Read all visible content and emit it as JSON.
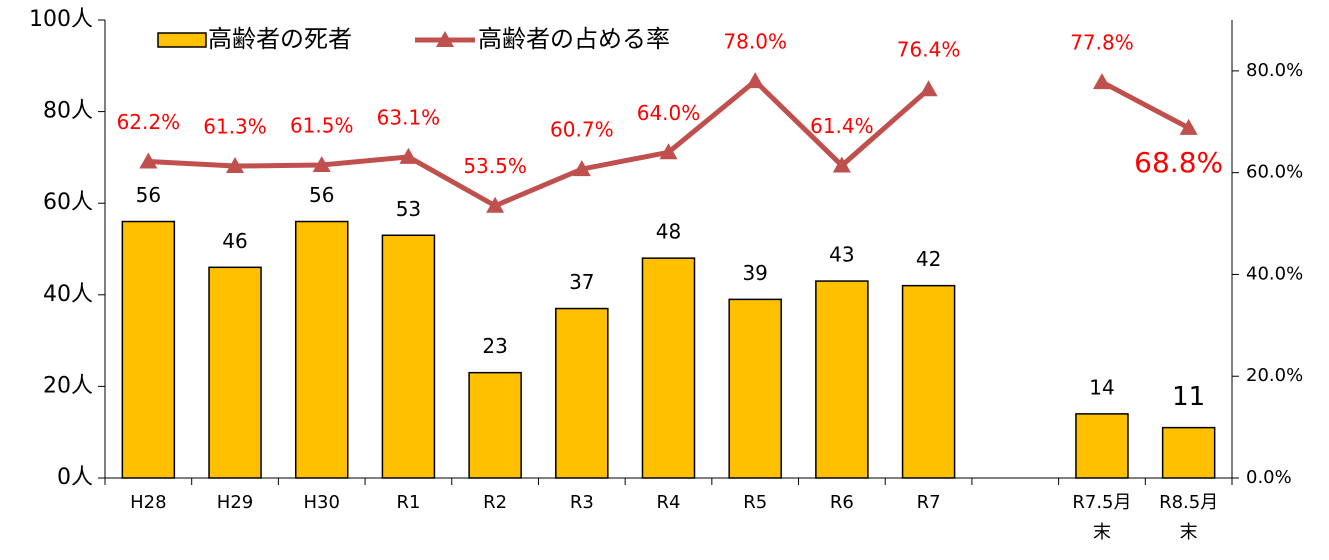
{
  "chart_data": {
    "type": "bar_line",
    "categories": [
      "H28",
      "H29",
      "H30",
      "R1",
      "R2",
      "R3",
      "R4",
      "R5",
      "R6",
      "R7",
      null,
      "R7.5月末",
      "R8.5月末"
    ],
    "series": [
      {
        "name": "高齢者の死者",
        "type": "bar",
        "color": "#ffc000",
        "values": [
          56,
          46,
          56,
          53,
          23,
          37,
          48,
          39,
          43,
          42,
          null,
          14,
          11
        ]
      },
      {
        "name": "高齢者の占める率",
        "type": "line",
        "axis": "y2",
        "color": "#c0504d",
        "values": [
          62.2,
          61.3,
          61.5,
          63.1,
          53.5,
          60.7,
          64.0,
          78.0,
          61.4,
          76.4,
          null,
          77.8,
          68.8
        ],
        "value_labels": [
          "62.2%",
          "61.3%",
          "61.5%",
          "63.1%",
          "53.5%",
          "60.7%",
          "64.0%",
          "78.0%",
          "61.4%",
          "76.4%",
          null,
          "77.8%",
          "68.8%"
        ]
      }
    ],
    "ylim": [
      0,
      100
    ],
    "yticks": [
      {
        "value": 0,
        "label": "0人"
      },
      {
        "value": 20,
        "label": "20人"
      },
      {
        "value": 40,
        "label": "40人"
      },
      {
        "value": 60,
        "label": "60人"
      },
      {
        "value": 80,
        "label": "80人"
      },
      {
        "value": 100,
        "label": "100人"
      }
    ],
    "y2lim": [
      0,
      90
    ],
    "y2ticks": [
      {
        "value": 0,
        "label": "0.0%"
      },
      {
        "value": 20,
        "label": "20.0%"
      },
      {
        "value": 40,
        "label": "40.0%"
      },
      {
        "value": 60,
        "label": "60.0%"
      },
      {
        "value": 80,
        "label": "80.0%"
      }
    ],
    "legend": "top-left",
    "grid": false
  }
}
